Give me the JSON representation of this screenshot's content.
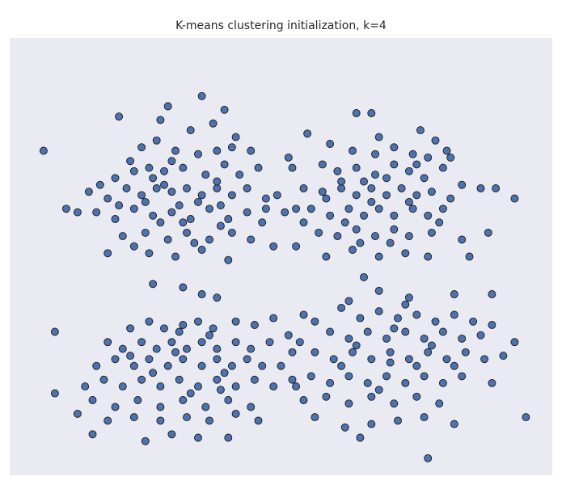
{
  "chart_data": {
    "type": "scatter",
    "title": "K-means clustering initialization, k=4",
    "xlabel": "",
    "ylabel": "",
    "axes_visible": false,
    "grid": false,
    "legend": "none",
    "colors": {
      "plot_background": "#eaeaf2",
      "marker_fill": "#4c72b0",
      "marker_edge": "#1a1a1a"
    },
    "xlim": [
      -7.2,
      7.2
    ],
    "ylim": [
      -6.5,
      6.3
    ],
    "series": [
      {
        "points": [
          [
            -4.3,
            4.0
          ],
          [
            -3.0,
            4.3
          ],
          [
            -6.3,
            3.0
          ],
          [
            -2.1,
            4.6
          ],
          [
            -1.5,
            4.2
          ],
          [
            -3.2,
            3.9
          ],
          [
            -2.4,
            3.6
          ],
          [
            -1.2,
            3.4
          ],
          [
            -1.8,
            3.8
          ],
          [
            -4.0,
            2.7
          ],
          [
            -3.7,
            3.1
          ],
          [
            -3.3,
            3.3
          ],
          [
            -2.8,
            3.0
          ],
          [
            -2.2,
            2.9
          ],
          [
            -1.7,
            3.0
          ],
          [
            -1.3,
            3.1
          ],
          [
            -0.8,
            3.0
          ],
          [
            -4.4,
            2.2
          ],
          [
            -4.8,
            2.0
          ],
          [
            -3.9,
            2.4
          ],
          [
            -3.5,
            2.5
          ],
          [
            -3.1,
            2.4
          ],
          [
            -2.6,
            2.5
          ],
          [
            -2.0,
            2.3
          ],
          [
            -1.5,
            2.6
          ],
          [
            -1.1,
            2.3
          ],
          [
            -0.6,
            2.5
          ],
          [
            -5.1,
            1.8
          ],
          [
            -4.6,
            1.6
          ],
          [
            -4.1,
            1.9
          ],
          [
            -3.7,
            1.7
          ],
          [
            -3.3,
            1.9
          ],
          [
            -2.9,
            1.8
          ],
          [
            -2.5,
            1.9
          ],
          [
            -2.1,
            1.7
          ],
          [
            -1.7,
            1.9
          ],
          [
            -1.3,
            1.7
          ],
          [
            -0.9,
            1.9
          ],
          [
            -0.4,
            1.6
          ],
          [
            -4.9,
            1.2
          ],
          [
            -4.4,
            1.0
          ],
          [
            -3.9,
            1.3
          ],
          [
            -3.4,
            1.1
          ],
          [
            -2.9,
            1.2
          ],
          [
            -2.4,
            1.0
          ],
          [
            -1.9,
            1.3
          ],
          [
            -1.4,
            1.0
          ],
          [
            -0.9,
            1.2
          ],
          [
            -0.5,
            0.9
          ],
          [
            -4.2,
            0.5
          ],
          [
            -3.6,
            0.6
          ],
          [
            -3.0,
            0.4
          ],
          [
            -2.5,
            0.6
          ],
          [
            -1.9,
            0.4
          ],
          [
            -1.3,
            0.6
          ],
          [
            -0.8,
            0.4
          ],
          [
            -5.7,
            1.3
          ],
          [
            -5.4,
            1.2
          ],
          [
            -4.6,
            0.0
          ],
          [
            -3.5,
            0.0
          ],
          [
            -2.8,
            -0.1
          ],
          [
            -2.1,
            0.1
          ],
          [
            -1.4,
            -0.2
          ],
          [
            -0.4,
            1.3
          ],
          [
            -0.2,
            0.2
          ],
          [
            -3.1,
            2.0
          ],
          [
            -2.7,
            1.4
          ],
          [
            -3.6,
            1.5
          ],
          [
            -2.2,
            1.5
          ],
          [
            -1.6,
            1.4
          ],
          [
            -4.3,
            1.4
          ],
          [
            -3.2,
            0.9
          ],
          [
            -2.6,
            0.9
          ],
          [
            -1.6,
            0.8
          ],
          [
            -3.9,
            0.2
          ],
          [
            -2.3,
            0.3
          ],
          [
            -1.7,
            2.1
          ],
          [
            -2.9,
            2.7
          ],
          [
            -3.4,
            2.2
          ],
          [
            -0.1,
            1.7
          ],
          [
            0.3,
            2.5
          ],
          [
            0.4,
            1.3
          ],
          [
            0.6,
            0.9
          ]
        ]
      },
      {
        "points": [
          [
            2.0,
            4.1
          ],
          [
            2.4,
            4.1
          ],
          [
            2.6,
            3.4
          ],
          [
            3.7,
            3.6
          ],
          [
            4.1,
            3.3
          ],
          [
            1.3,
            3.2
          ],
          [
            1.9,
            3.0
          ],
          [
            2.5,
            2.9
          ],
          [
            3.0,
            3.1
          ],
          [
            3.5,
            2.9
          ],
          [
            3.9,
            2.8
          ],
          [
            4.4,
            3.0
          ],
          [
            1.1,
            2.6
          ],
          [
            1.5,
            2.4
          ],
          [
            2.0,
            2.5
          ],
          [
            2.5,
            2.3
          ],
          [
            3.0,
            2.6
          ],
          [
            3.4,
            2.4
          ],
          [
            3.8,
            2.2
          ],
          [
            4.3,
            2.5
          ],
          [
            4.8,
            2.0
          ],
          [
            0.6,
            1.9
          ],
          [
            1.1,
            1.8
          ],
          [
            1.6,
            1.9
          ],
          [
            2.0,
            1.7
          ],
          [
            2.4,
            1.9
          ],
          [
            2.8,
            1.7
          ],
          [
            3.2,
            1.9
          ],
          [
            3.6,
            1.7
          ],
          [
            4.0,
            1.8
          ],
          [
            4.5,
            1.6
          ],
          [
            5.3,
            1.9
          ],
          [
            0.8,
            1.3
          ],
          [
            1.3,
            1.1
          ],
          [
            1.8,
            1.3
          ],
          [
            2.2,
            1.1
          ],
          [
            2.6,
            1.3
          ],
          [
            3.0,
            1.1
          ],
          [
            3.5,
            1.3
          ],
          [
            3.9,
            1.1
          ],
          [
            4.3,
            1.3
          ],
          [
            1.0,
            0.6
          ],
          [
            1.5,
            0.5
          ],
          [
            2.0,
            0.7
          ],
          [
            2.5,
            0.5
          ],
          [
            3.0,
            0.7
          ],
          [
            3.4,
            0.5
          ],
          [
            4.0,
            0.6
          ],
          [
            4.8,
            0.4
          ],
          [
            0.4,
            0.2
          ],
          [
            1.2,
            -0.1
          ],
          [
            1.9,
            0.1
          ],
          [
            2.6,
            -0.1
          ],
          [
            3.3,
            0.0
          ],
          [
            3.9,
            -0.1
          ],
          [
            5.0,
            -0.1
          ],
          [
            5.5,
            0.6
          ],
          [
            5.7,
            1.9
          ],
          [
            6.2,
            1.6
          ],
          [
            0.2,
            2.8
          ],
          [
            0.7,
            3.5
          ],
          [
            1.6,
            2.1
          ],
          [
            2.2,
            2.1
          ],
          [
            2.8,
            2.2
          ],
          [
            3.4,
            1.5
          ],
          [
            1.7,
            0.9
          ],
          [
            2.9,
            0.3
          ],
          [
            3.6,
            2.6
          ],
          [
            4.5,
            2.8
          ],
          [
            2.4,
            1.5
          ],
          [
            1.2,
            1.6
          ],
          [
            4.2,
            0.9
          ],
          [
            2.2,
            -0.7
          ],
          [
            1.8,
            -1.4
          ],
          [
            2.1,
            0.3
          ],
          [
            0.1,
            1.2
          ]
        ]
      },
      {
        "points": [
          [
            -3.4,
            -0.9
          ],
          [
            -2.6,
            -1.0
          ],
          [
            -2.1,
            -1.2
          ],
          [
            -1.7,
            -1.3
          ],
          [
            -6.0,
            -2.3
          ],
          [
            -4.0,
            -2.2
          ],
          [
            -3.5,
            -2.0
          ],
          [
            -3.1,
            -2.2
          ],
          [
            -2.6,
            -2.1
          ],
          [
            -2.2,
            -2.0
          ],
          [
            -1.8,
            -2.2
          ],
          [
            -1.2,
            -2.0
          ],
          [
            -0.7,
            -2.1
          ],
          [
            -0.2,
            -1.9
          ],
          [
            -4.6,
            -2.6
          ],
          [
            -4.2,
            -2.8
          ],
          [
            -3.7,
            -2.6
          ],
          [
            -3.3,
            -2.8
          ],
          [
            -2.9,
            -2.6
          ],
          [
            -2.5,
            -2.8
          ],
          [
            -2.1,
            -2.6
          ],
          [
            -1.7,
            -2.8
          ],
          [
            -1.2,
            -2.6
          ],
          [
            -0.8,
            -2.8
          ],
          [
            -0.3,
            -2.6
          ],
          [
            0.2,
            -2.4
          ],
          [
            -4.9,
            -3.3
          ],
          [
            -4.4,
            -3.1
          ],
          [
            -3.9,
            -3.3
          ],
          [
            -3.5,
            -3.1
          ],
          [
            -3.0,
            -3.3
          ],
          [
            -2.6,
            -3.1
          ],
          [
            -2.1,
            -3.3
          ],
          [
            -1.7,
            -3.1
          ],
          [
            -1.3,
            -3.3
          ],
          [
            -0.9,
            -3.1
          ],
          [
            -0.5,
            -3.3
          ],
          [
            -5.2,
            -3.9
          ],
          [
            -4.7,
            -3.7
          ],
          [
            -4.2,
            -3.9
          ],
          [
            -3.7,
            -3.7
          ],
          [
            -3.2,
            -3.9
          ],
          [
            -2.7,
            -3.7
          ],
          [
            -2.2,
            -3.9
          ],
          [
            -1.7,
            -3.7
          ],
          [
            -1.2,
            -3.9
          ],
          [
            -0.7,
            -3.7
          ],
          [
            -0.2,
            -3.9
          ],
          [
            -5.0,
            -4.3
          ],
          [
            -4.4,
            -4.5
          ],
          [
            -3.8,
            -4.3
          ],
          [
            -3.2,
            -4.5
          ],
          [
            -2.6,
            -4.3
          ],
          [
            -2.0,
            -4.5
          ],
          [
            -1.4,
            -4.3
          ],
          [
            -0.8,
            -4.5
          ],
          [
            -6.0,
            -4.1
          ],
          [
            -5.4,
            -4.7
          ],
          [
            -4.6,
            -4.9
          ],
          [
            -3.9,
            -4.8
          ],
          [
            -3.2,
            -4.9
          ],
          [
            -2.5,
            -4.8
          ],
          [
            -1.9,
            -4.9
          ],
          [
            -1.2,
            -4.7
          ],
          [
            -0.6,
            -4.9
          ],
          [
            -5.0,
            -5.3
          ],
          [
            -3.6,
            -5.5
          ],
          [
            -2.9,
            -5.3
          ],
          [
            -2.2,
            -5.4
          ],
          [
            -1.4,
            -5.4
          ],
          [
            0.6,
            -1.8
          ],
          [
            0.9,
            -2.0
          ],
          [
            0.3,
            -2.9
          ],
          [
            0.0,
            -3.3
          ],
          [
            0.3,
            -3.7
          ],
          [
            0.6,
            -4.3
          ],
          [
            -2.7,
            -2.3
          ],
          [
            -1.5,
            -3.5
          ],
          [
            -3.4,
            -3.5
          ],
          [
            -2.4,
            -4.1
          ],
          [
            -1.6,
            -4.0
          ],
          [
            -2.8,
            -2.9
          ],
          [
            -4.0,
            -3.0
          ],
          [
            -1.9,
            -2.4
          ]
        ]
      },
      {
        "points": [
          [
            2.6,
            -1.1
          ],
          [
            3.4,
            -1.3
          ],
          [
            4.6,
            -1.2
          ],
          [
            5.6,
            -1.2
          ],
          [
            1.6,
            -1.6
          ],
          [
            2.1,
            -1.9
          ],
          [
            2.6,
            -1.7
          ],
          [
            3.1,
            -1.9
          ],
          [
            3.6,
            -1.8
          ],
          [
            4.1,
            -2.0
          ],
          [
            4.6,
            -1.8
          ],
          [
            5.1,
            -2.0
          ],
          [
            5.6,
            -2.1
          ],
          [
            1.3,
            -2.3
          ],
          [
            1.8,
            -2.5
          ],
          [
            2.3,
            -2.3
          ],
          [
            2.8,
            -2.5
          ],
          [
            3.3,
            -2.3
          ],
          [
            3.8,
            -2.5
          ],
          [
            4.3,
            -2.3
          ],
          [
            4.8,
            -2.5
          ],
          [
            5.3,
            -2.4
          ],
          [
            0.9,
            -2.9
          ],
          [
            1.4,
            -3.1
          ],
          [
            1.9,
            -2.9
          ],
          [
            2.4,
            -3.1
          ],
          [
            2.9,
            -2.9
          ],
          [
            3.4,
            -3.1
          ],
          [
            3.9,
            -2.9
          ],
          [
            4.4,
            -3.1
          ],
          [
            4.9,
            -2.9
          ],
          [
            5.4,
            -3.1
          ],
          [
            0.8,
            -3.6
          ],
          [
            1.3,
            -3.8
          ],
          [
            1.8,
            -3.6
          ],
          [
            2.3,
            -3.8
          ],
          [
            2.8,
            -3.6
          ],
          [
            3.3,
            -3.8
          ],
          [
            3.8,
            -3.6
          ],
          [
            4.3,
            -3.8
          ],
          [
            4.8,
            -3.6
          ],
          [
            1.2,
            -4.2
          ],
          [
            1.8,
            -4.4
          ],
          [
            2.4,
            -4.2
          ],
          [
            3.0,
            -4.4
          ],
          [
            3.6,
            -4.2
          ],
          [
            4.2,
            -4.4
          ],
          [
            0.9,
            -4.8
          ],
          [
            1.7,
            -5.1
          ],
          [
            2.4,
            -5.0
          ],
          [
            3.1,
            -4.9
          ],
          [
            3.8,
            -4.8
          ],
          [
            4.6,
            -5.0
          ],
          [
            2.1,
            -5.4
          ],
          [
            5.6,
            -3.8
          ],
          [
            5.9,
            -3.0
          ],
          [
            6.2,
            -2.6
          ],
          [
            6.5,
            -4.8
          ],
          [
            3.9,
            -6.0
          ],
          [
            0.4,
            -3.9
          ],
          [
            0.5,
            -2.6
          ],
          [
            2.0,
            -2.7
          ],
          [
            3.0,
            -2.2
          ],
          [
            3.6,
            -3.3
          ],
          [
            2.6,
            -4.0
          ],
          [
            4.0,
            -2.7
          ],
          [
            1.6,
            -3.3
          ],
          [
            4.6,
            -3.3
          ],
          [
            2.9,
            -3.2
          ],
          [
            3.3,
            -1.5
          ]
        ]
      }
    ]
  }
}
